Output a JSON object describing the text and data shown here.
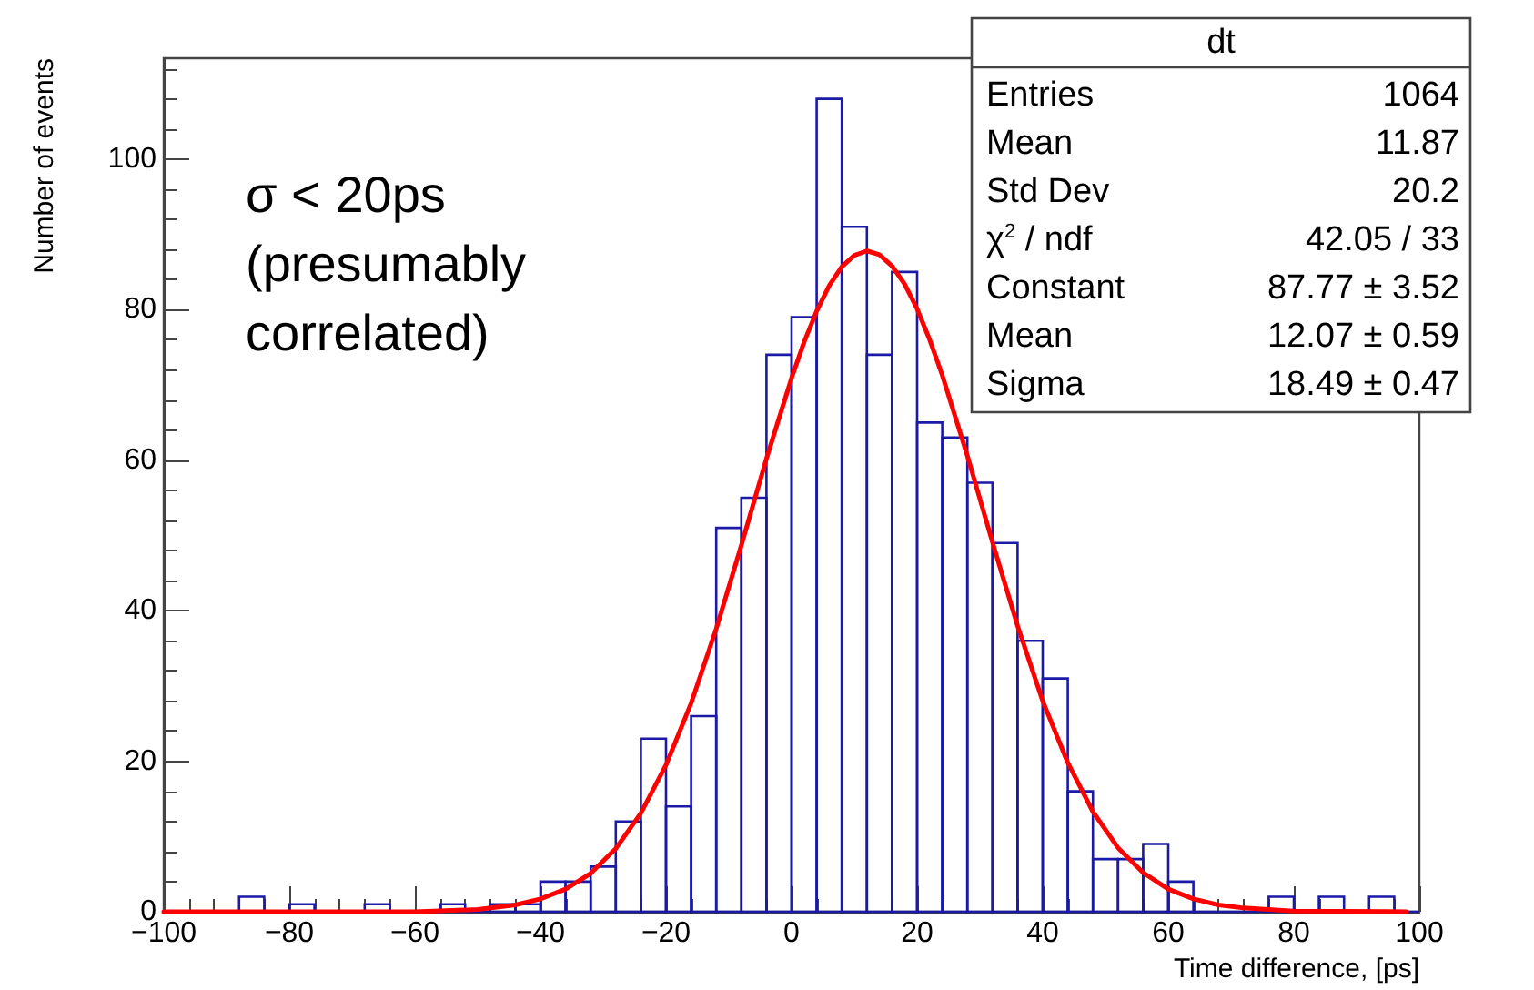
{
  "chart_data": {
    "type": "histogram",
    "xlabel": "Time difference, [ps]",
    "ylabel": "Number of events",
    "bins": [
      -100,
      -96,
      -92,
      -88,
      -84,
      -80,
      -76,
      -72,
      -68,
      -64,
      -60,
      -56,
      -52,
      -48,
      -44,
      -40,
      -36,
      -32,
      -28,
      -24,
      -20,
      -16,
      -12,
      -8,
      -4,
      0,
      4,
      8,
      12,
      16,
      20,
      24,
      28,
      32,
      36,
      40,
      44,
      48,
      52,
      56,
      60,
      64,
      68,
      72,
      76,
      80,
      84,
      88,
      92,
      96,
      100
    ],
    "series": [
      {
        "color": "#1a1aa6",
        "values": [
          0,
          0,
          0,
          2,
          0,
          1,
          0,
          0,
          1,
          0,
          0,
          1,
          0,
          1,
          1,
          4,
          4,
          6,
          12,
          23,
          14,
          26,
          51,
          55,
          74,
          79,
          108,
          91,
          74,
          85,
          65,
          63,
          57,
          49,
          36,
          31,
          16,
          7,
          7,
          9,
          4,
          0,
          0,
          0,
          2,
          0,
          2,
          0,
          2,
          0
        ]
      },
      {
        "type": "line",
        "color": "#ff0000",
        "x": [
          -100,
          -60,
          -50,
          -44,
          -40,
          -36,
          -32,
          -28,
          -24,
          -20,
          -16,
          -12,
          -8,
          -4,
          0,
          2,
          4,
          6,
          8,
          10,
          12,
          14,
          16,
          18,
          20,
          22,
          24,
          28,
          32,
          36,
          40,
          44,
          48,
          52,
          56,
          60,
          64,
          68,
          72,
          80,
          98
        ],
        "values": [
          0,
          0,
          0.3,
          0.9,
          1.7,
          3.0,
          5.1,
          8.4,
          13.1,
          19.5,
          27.7,
          37.6,
          48.7,
          60.2,
          70.9,
          75.7,
          79.8,
          83.2,
          85.7,
          87.2,
          87.8,
          87.3,
          85.8,
          83.4,
          80.1,
          76.0,
          71.3,
          60.6,
          49.1,
          38.0,
          28.0,
          19.8,
          13.3,
          8.5,
          5.2,
          3.0,
          1.7,
          0.9,
          0.5,
          0.1,
          0
        ]
      }
    ],
    "xlim": [
      -100,
      100
    ],
    "xticks": [
      -100,
      -80,
      -60,
      -40,
      -20,
      0,
      20,
      40,
      60,
      80,
      100
    ],
    "ylim": [
      0,
      113.4
    ],
    "yticks": [
      0,
      20,
      40,
      60,
      80,
      100
    ],
    "grid": false,
    "marker": "none",
    "line_style": "solid",
    "annotations": [
      "σ < 20ps\n(presumably\ncorrelated)",
      "dt",
      "Entries",
      "1064",
      "Mean",
      "11.87",
      "Std Dev",
      "20.2",
      "χ$^{2}$ / ndf",
      "42.05 / 33",
      "Constant",
      "87.77 ± 3.52",
      "Mean",
      "12.07 ± 0.59",
      "Sigma",
      "18.49 ± 0.47"
    ]
  }
}
